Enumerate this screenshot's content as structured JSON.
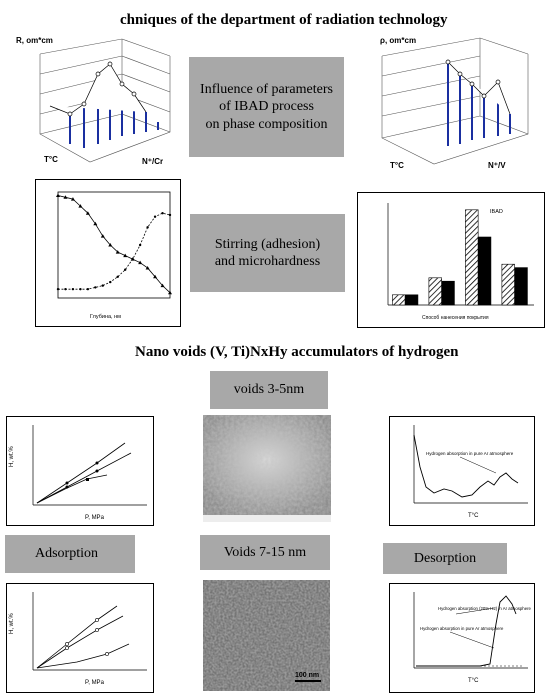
{
  "header": {
    "title": "chniques of the department of radiation technology"
  },
  "section1": {
    "box_label_line1": "Influence of parameters",
    "box_label_line2": "of IBAD process",
    "box_label_line3": "on phase composition",
    "plot_left": {
      "zlabel": "R, om*cm",
      "xlabel": "T°C",
      "ylabel": "N⁺/Cr"
    },
    "plot_right": {
      "zlabel": "ρ, om*cm",
      "xlabel": "T°C",
      "ylabel": "N⁺/V"
    }
  },
  "section2": {
    "box_label_line1": "Stirring (adhesion)",
    "box_label_line2": "and microhardness",
    "chart_left_xlabel": "Глубина, нм",
    "chart_right_xlabel": "Способ нанесения покрытия",
    "chart_right_legend": "IBAD"
  },
  "section3": {
    "title": "Nano voids (V, Ti)NxHy accumulators of hydrogen",
    "voids_small_label": "voids  3-5nm",
    "adsorption_label": "Adsorption",
    "voids_large_label": "Voids 7-15 nm",
    "desorption_label": "Desorption",
    "absorption_plot": {
      "xlabel": "P, MPa",
      "ylabel": "H, wt.%"
    },
    "absorption_plot2": {
      "xlabel": "P, MPa",
      "ylabel": "H, wt.%"
    },
    "tds_plot": {
      "xlabel": "T°C",
      "annotation": "Hydrogen absorption in pure Ar atmosphere"
    },
    "tds_plot2": {
      "xlabel": "T°C",
      "annotation1": "Hydrogen absorption (20% H2) in Ar atmosphere",
      "annotation2": "Hydrogen absorption in pure Ar atmosphere"
    },
    "tem_scalebar": "100 nm"
  },
  "chart_data": [
    {
      "type": "line",
      "series": [
        {
          "values": [
            58,
            57,
            56,
            52,
            48,
            42,
            35,
            30,
            26,
            24,
            22,
            20,
            17,
            12,
            7,
            3
          ]
        },
        {
          "values": [
            5,
            5,
            5,
            5,
            5,
            6,
            7,
            9,
            12,
            16,
            22,
            30,
            40,
            46,
            48,
            47
          ]
        }
      ],
      "x": [
        0,
        10,
        20,
        30,
        40,
        50,
        60,
        70,
        80,
        90,
        100,
        110,
        120,
        130,
        140,
        150
      ]
    },
    {
      "type": "bar",
      "categories": [
        "1",
        "2",
        "3",
        "4"
      ],
      "series": [
        {
          "values": [
            3,
            8,
            28,
            12
          ]
        },
        {
          "values": [
            3,
            7,
            20,
            11
          ]
        }
      ],
      "xlabel": "Способ нанесения покрытия"
    }
  ]
}
